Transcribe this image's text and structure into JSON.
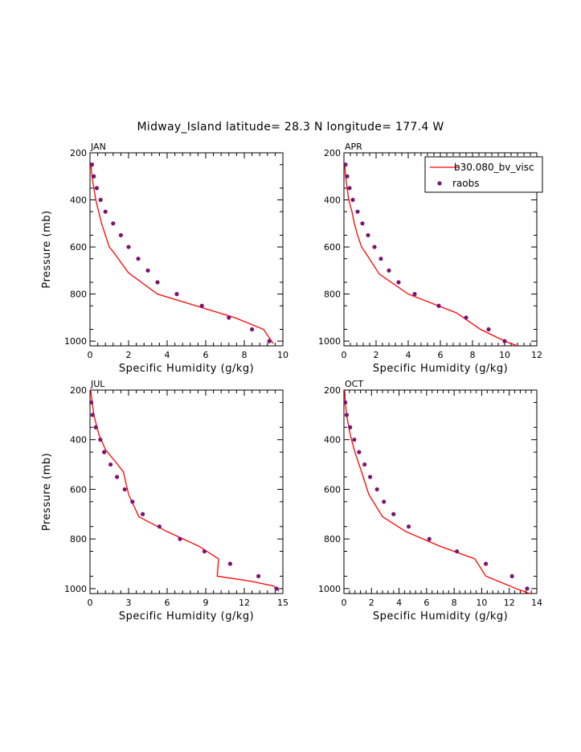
{
  "figure": {
    "title": "Midway_Island  latitude= 28.3 N longitude= 177.4 W"
  },
  "colors": {
    "model": "#ff0000",
    "obs": "#7b1470",
    "axis": "#000000"
  },
  "legend": {
    "model_label": "b30.080_bv_visc",
    "obs_label": "raobs",
    "placement": "top-right of APR panel"
  },
  "chart_data": [
    {
      "type": "line",
      "panel": "JAN",
      "xlabel": "Specific Humidity (g/kg)",
      "ylabel": "Pressure (mb)",
      "xlim": [
        0,
        10
      ],
      "ylim": [
        1020,
        200
      ],
      "xticks": [
        0,
        2,
        4,
        6,
        8,
        10
      ],
      "yticks": [
        200,
        400,
        600,
        800,
        1000
      ],
      "series": [
        {
          "name": "b30.080_bv_visc",
          "kind": "line",
          "x": [
            0.05,
            0.1,
            0.2,
            0.3,
            0.45,
            0.6,
            0.8,
            1.0,
            1.2,
            2.0,
            3.5,
            5.5,
            7.5,
            9.0,
            9.5
          ],
          "y": [
            250,
            300,
            350,
            400,
            450,
            500,
            550,
            600,
            620,
            710,
            800,
            850,
            900,
            950,
            1010
          ]
        },
        {
          "name": "raobs",
          "kind": "scatter",
          "x": [
            0.1,
            0.2,
            0.35,
            0.55,
            0.8,
            1.2,
            1.6,
            2.0,
            2.5,
            3.0,
            3.5,
            4.5,
            5.8,
            7.2,
            8.4,
            9.3
          ],
          "y": [
            250,
            300,
            350,
            400,
            450,
            500,
            550,
            600,
            650,
            700,
            750,
            800,
            850,
            900,
            950,
            1000
          ]
        }
      ]
    },
    {
      "type": "line",
      "panel": "APR",
      "xlabel": "Specific Humidity (g/kg)",
      "ylabel": "",
      "xlim": [
        0,
        12
      ],
      "ylim": [
        1020,
        200
      ],
      "xticks": [
        0,
        2,
        4,
        6,
        8,
        10,
        12
      ],
      "yticks": [
        200,
        400,
        600,
        800,
        1000
      ],
      "series": [
        {
          "name": "b30.080_bv_visc",
          "kind": "line",
          "x": [
            0.05,
            0.1,
            0.2,
            0.3,
            0.5,
            0.65,
            0.85,
            1.1,
            1.3,
            2.2,
            4.0,
            7.0,
            8.5,
            10.0,
            10.8
          ],
          "y": [
            250,
            300,
            350,
            400,
            450,
            500,
            550,
            600,
            620,
            715,
            800,
            880,
            950,
            1000,
            1020
          ]
        },
        {
          "name": "raobs",
          "kind": "scatter",
          "x": [
            0.1,
            0.2,
            0.35,
            0.55,
            0.85,
            1.15,
            1.5,
            1.9,
            2.3,
            2.8,
            3.4,
            4.4,
            5.9,
            7.6,
            9.0,
            10.0
          ],
          "y": [
            250,
            300,
            350,
            400,
            450,
            500,
            550,
            600,
            650,
            700,
            750,
            800,
            850,
            900,
            950,
            1000
          ]
        }
      ]
    },
    {
      "type": "line",
      "panel": "JUL",
      "xlabel": "Specific Humidity (g/kg)",
      "ylabel": "Pressure (mb)",
      "xlim": [
        0,
        15
      ],
      "ylim": [
        1020,
        200
      ],
      "xticks": [
        0,
        3,
        6,
        9,
        12,
        15
      ],
      "yticks": [
        200,
        400,
        600,
        800,
        1000
      ],
      "series": [
        {
          "name": "b30.080_bv_visc",
          "kind": "line",
          "x": [
            0.05,
            0.3,
            0.7,
            1.2,
            2.0,
            2.6,
            3.0,
            3.8,
            6.0,
            8.5,
            10.0,
            9.9,
            12.5,
            14.3,
            14.7
          ],
          "y": [
            200,
            300,
            380,
            440,
            490,
            530,
            620,
            710,
            770,
            830,
            880,
            950,
            970,
            990,
            1010
          ]
        },
        {
          "name": "raobs",
          "kind": "scatter",
          "x": [
            0.1,
            0.2,
            0.45,
            0.8,
            1.1,
            1.6,
            2.1,
            2.7,
            3.3,
            4.1,
            5.4,
            7.0,
            8.9,
            10.9,
            13.1,
            14.5
          ],
          "y": [
            250,
            300,
            350,
            400,
            450,
            500,
            550,
            600,
            650,
            700,
            750,
            800,
            850,
            900,
            950,
            1000
          ]
        }
      ]
    },
    {
      "type": "line",
      "panel": "OCT",
      "xlabel": "Specific Humidity (g/kg)",
      "ylabel": "",
      "xlim": [
        0,
        14
      ],
      "ylim": [
        1020,
        200
      ],
      "xticks": [
        0,
        2,
        4,
        6,
        8,
        10,
        12,
        14
      ],
      "yticks": [
        200,
        400,
        600,
        800,
        1000
      ],
      "series": [
        {
          "name": "b30.080_bv_visc",
          "kind": "line",
          "x": [
            0.05,
            0.1,
            0.2,
            0.35,
            0.55,
            0.8,
            1.1,
            1.4,
            1.8,
            2.8,
            4.5,
            7.0,
            9.5,
            10.3,
            12.5,
            13.5
          ],
          "y": [
            200,
            250,
            300,
            350,
            400,
            450,
            500,
            550,
            620,
            710,
            770,
            830,
            880,
            950,
            1000,
            1020
          ]
        },
        {
          "name": "raobs",
          "kind": "scatter",
          "x": [
            0.1,
            0.2,
            0.45,
            0.75,
            1.1,
            1.5,
            1.9,
            2.4,
            2.9,
            3.6,
            4.7,
            6.2,
            8.2,
            10.3,
            12.2,
            13.3
          ],
          "y": [
            250,
            300,
            350,
            400,
            450,
            500,
            550,
            600,
            650,
            700,
            750,
            800,
            850,
            900,
            950,
            1000
          ]
        }
      ]
    }
  ]
}
